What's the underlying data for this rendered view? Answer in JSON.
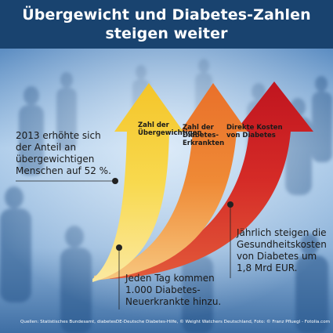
{
  "title": {
    "line1": "Übergewicht und Diabetes-Zahlen",
    "line2": "steigen weiter"
  },
  "arrows": [
    {
      "line1": "Zahl der",
      "line2": "Übergewichtigen",
      "line3": ""
    },
    {
      "line1": "Zahl der",
      "line2": "Diabetes-",
      "line3": "Erkrankten"
    },
    {
      "line1": "Direkte Kosten",
      "line2": "von Diabetes",
      "line3": ""
    }
  ],
  "callouts": {
    "left": [
      "2013 erhöhte sich",
      "der Anteil an",
      "übergewichtigen",
      "Menschen auf 52 %."
    ],
    "bottom": [
      "Jeden Tag kommen",
      "1.000 Diabetes-",
      "Neuerkrankte hinzu."
    ],
    "right": [
      "Jährlich steigen die",
      "Gesundheitskosten",
      "von Diabetes um",
      "1,8 Mrd EUR."
    ]
  },
  "source": "Quellen: Statistisches Bundesamt, diabetesDE-Deutsche Diabetes-Hilfe, © Weight Watchers Deutschland, Foto: © Franz Pfluegl - Fotolia.com",
  "colors": {
    "title_bg": "#19436f",
    "arrow_yellow": "#f7d43a",
    "arrow_orange": "#ee7a2f",
    "arrow_red": "#d8232a"
  }
}
